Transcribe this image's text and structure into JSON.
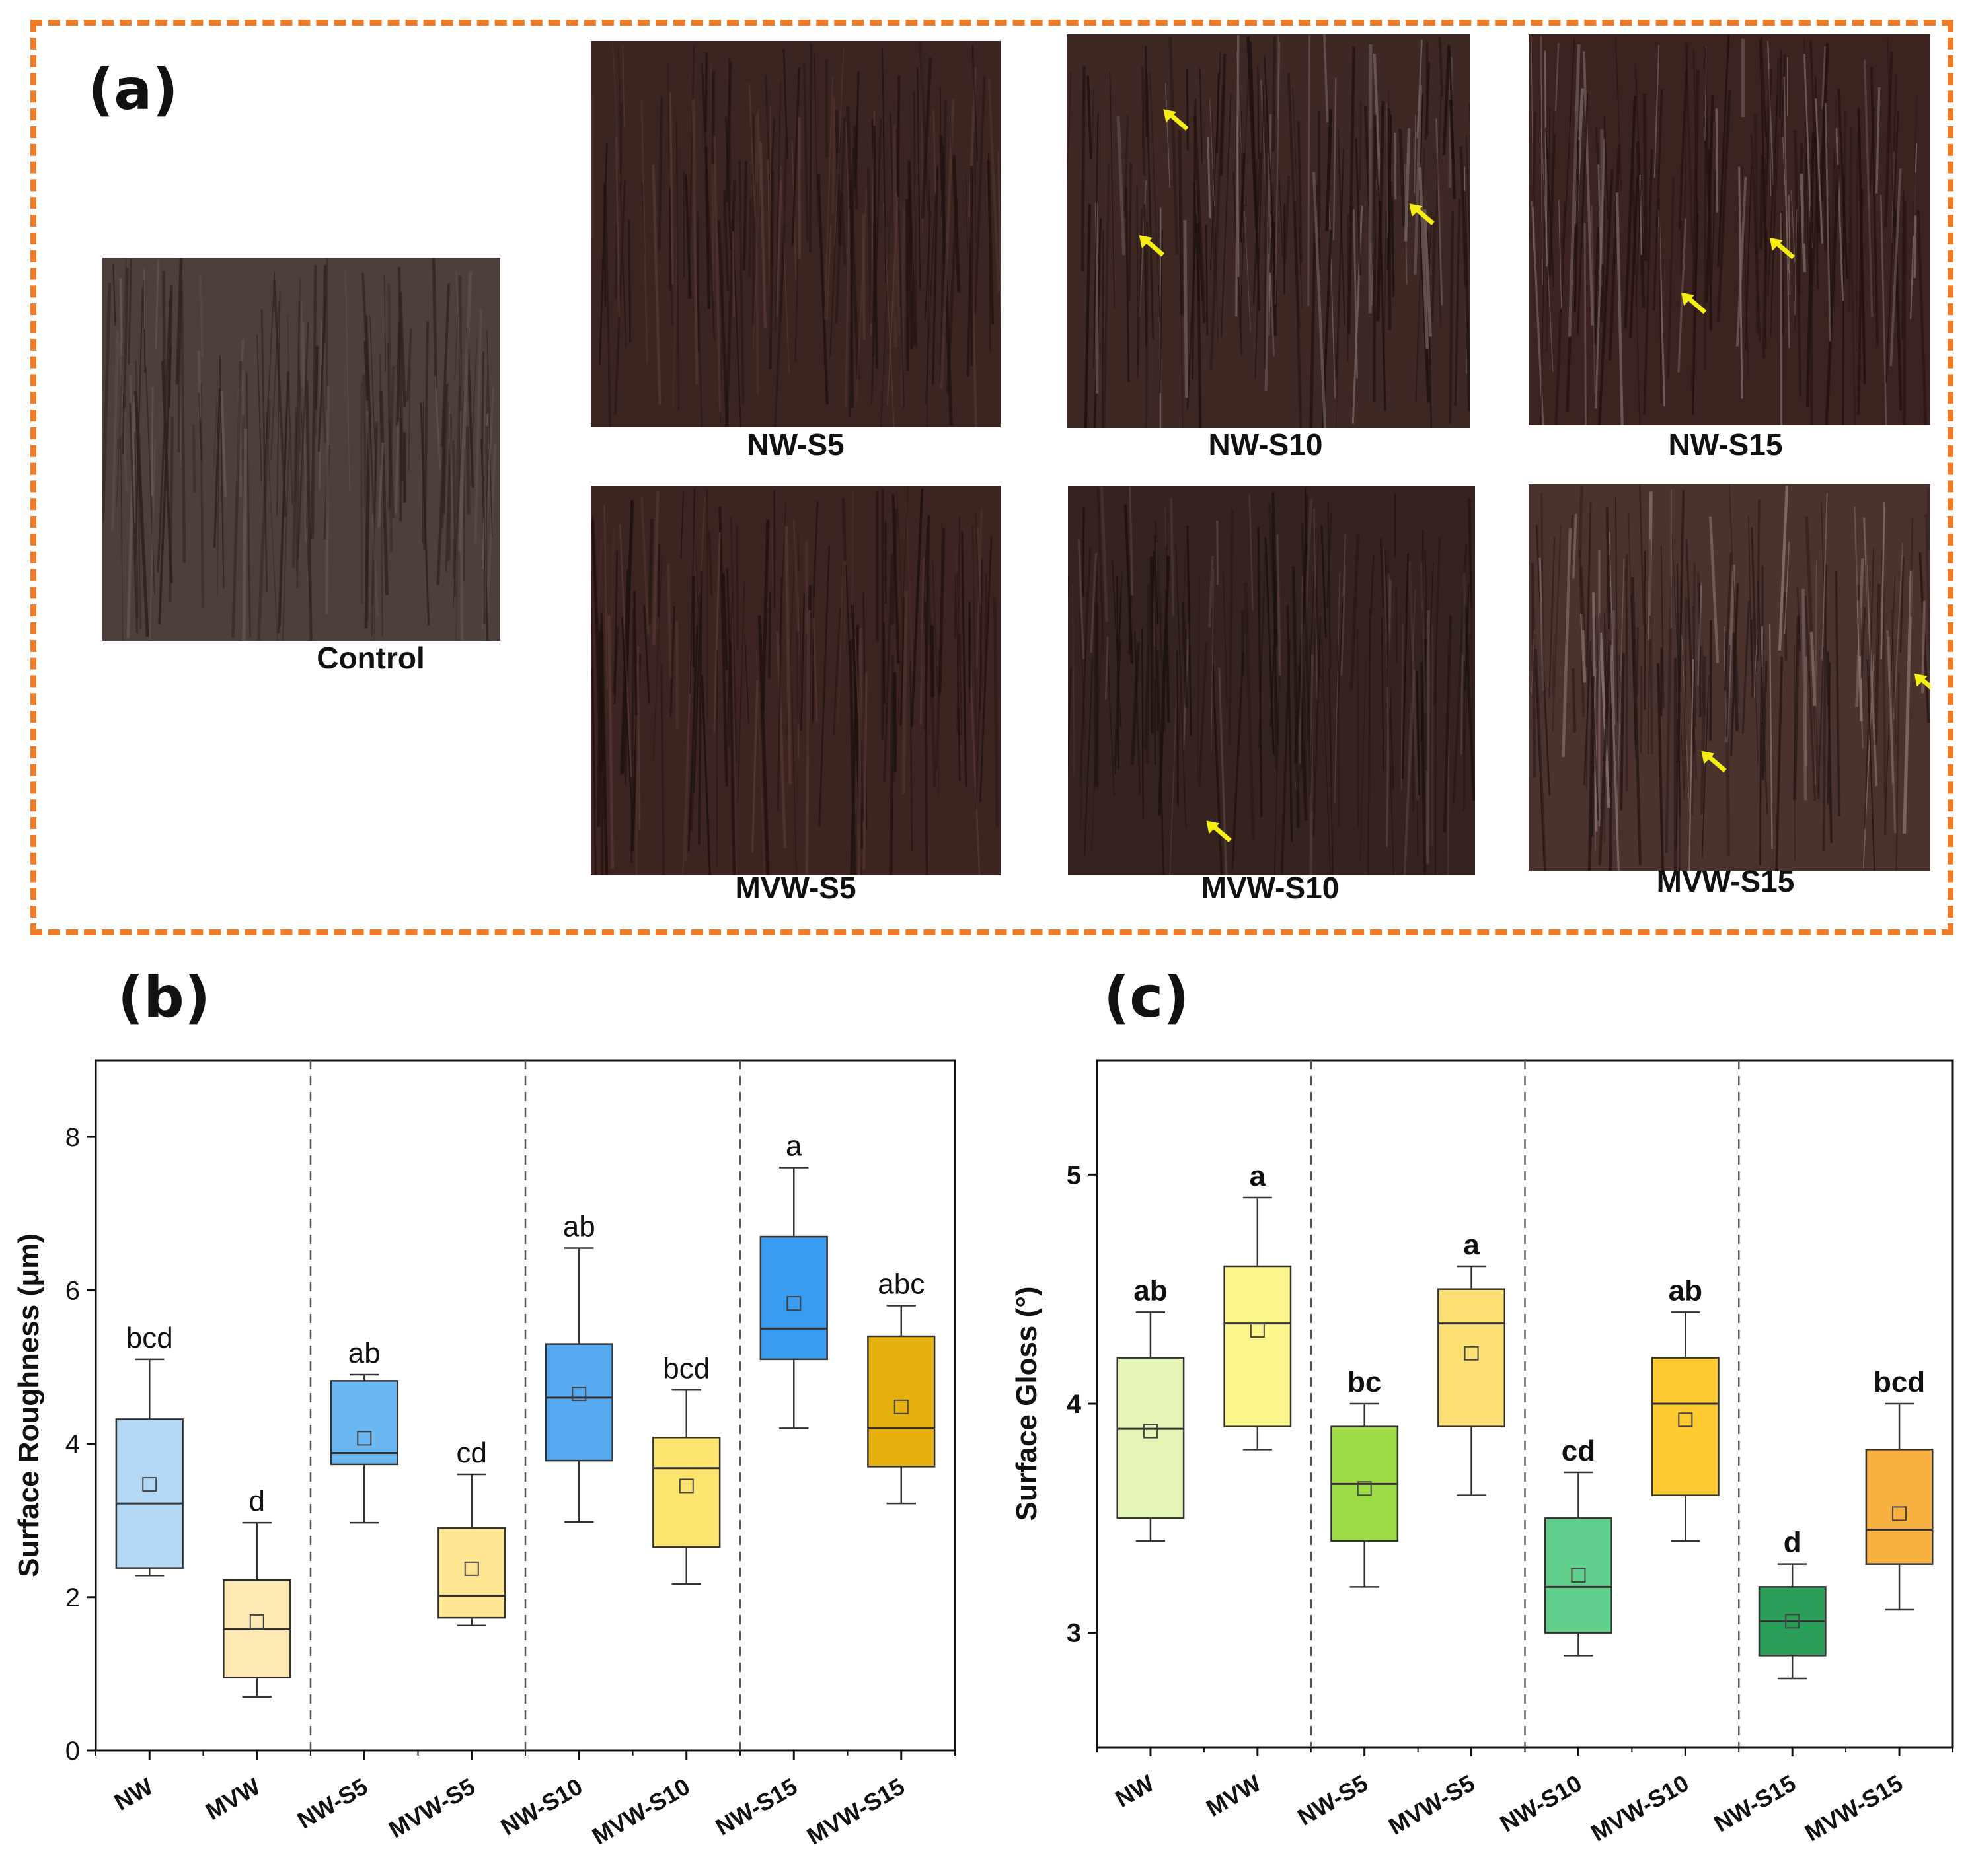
{
  "panel_a": {
    "letter": "(a)",
    "photos": [
      {
        "label": "Control",
        "base": "#4d3f3b",
        "dark": "#2c211e",
        "light": "#6a5650",
        "arrows": []
      },
      {
        "label": "NW-S5",
        "base": "#3b2521",
        "dark": "#1f1210",
        "light": "#563833",
        "arrows": []
      },
      {
        "label": "NW-S10",
        "base": "#3e2824",
        "dark": "#1c110f",
        "light": "#7a6a66",
        "arrows": [
          [
            0.24,
            0.19
          ],
          [
            0.18,
            0.51
          ],
          [
            0.85,
            0.43
          ]
        ]
      },
      {
        "label": "NW-S15",
        "base": "#3b2320",
        "dark": "#20120f",
        "light": "#7b6a66",
        "arrows": [
          [
            0.6,
            0.52
          ],
          [
            0.38,
            0.66
          ]
        ]
      },
      {
        "label": "MVW-S5",
        "base": "#3c2420",
        "dark": "#1d110e",
        "light": "#553632",
        "arrows": []
      },
      {
        "label": "MVW-S10",
        "base": "#352320",
        "dark": "#1b110f",
        "light": "#5a4440",
        "arrows": [
          [
            0.34,
            0.86
          ]
        ]
      },
      {
        "label": "MVW-S15",
        "base": "#4a322d",
        "dark": "#231614",
        "light": "#8a7570",
        "arrows": [
          [
            0.43,
            0.69
          ],
          [
            0.96,
            0.49
          ]
        ]
      }
    ]
  },
  "panel_b_letter": "(b)",
  "panel_c_letter": "(c)",
  "chart_data": [
    {
      "type": "box",
      "ylabel": "Surface Roughness (μm)",
      "ylim": [
        0,
        9
      ],
      "yticks": [
        0,
        2,
        4,
        6,
        8
      ],
      "categories": [
        "NW",
        "MVW",
        "NW-S5",
        "MVW-S5",
        "NW-S10",
        "MVW-S10",
        "NW-S15",
        "MVW-S15"
      ],
      "group_separators_after": [
        2,
        4,
        6
      ],
      "boxes": [
        {
          "min": 2.28,
          "q1": 2.38,
          "median": 3.22,
          "q3": 4.32,
          "max": 5.1,
          "mean": 3.47,
          "letter": "bcd",
          "color": "#b3d9f7"
        },
        {
          "min": 0.7,
          "q1": 0.95,
          "median": 1.58,
          "q3": 2.22,
          "max": 2.97,
          "mean": 1.68,
          "letter": "d",
          "color": "#fce9b3"
        },
        {
          "min": 2.97,
          "q1": 3.73,
          "median": 3.88,
          "q3": 4.82,
          "max": 4.9,
          "mean": 4.07,
          "letter": "ab",
          "color": "#6ab7f2"
        },
        {
          "min": 1.63,
          "q1": 1.73,
          "median": 2.02,
          "q3": 2.9,
          "max": 3.6,
          "mean": 2.37,
          "letter": "cd",
          "color": "#fde592"
        },
        {
          "min": 2.98,
          "q1": 3.78,
          "median": 4.6,
          "q3": 5.3,
          "max": 6.55,
          "mean": 4.65,
          "letter": "ab",
          "color": "#57a9ef"
        },
        {
          "min": 2.17,
          "q1": 2.65,
          "median": 3.68,
          "q3": 4.08,
          "max": 4.7,
          "mean": 3.45,
          "letter": "bcd",
          "color": "#fde46e"
        },
        {
          "min": 4.2,
          "q1": 5.1,
          "median": 5.5,
          "q3": 6.7,
          "max": 7.6,
          "mean": 5.83,
          "letter": "a",
          "color": "#3a9cf0"
        },
        {
          "min": 3.22,
          "q1": 3.7,
          "median": 4.2,
          "q3": 5.4,
          "max": 5.8,
          "mean": 4.48,
          "letter": "abc",
          "color": "#e6b10c"
        }
      ]
    },
    {
      "type": "box",
      "ylabel": "Surface Gloss (°)",
      "ylim": [
        2.5,
        5.5
      ],
      "yticks": [
        3,
        4,
        5
      ],
      "categories": [
        "NW",
        "MVW",
        "NW-S5",
        "MVW-S5",
        "NW-S10",
        "MVW-S10",
        "NW-S15",
        "MVW-S15"
      ],
      "group_separators_after": [
        2,
        4,
        6
      ],
      "boxes": [
        {
          "min": 3.4,
          "q1": 3.5,
          "median": 3.89,
          "q3": 4.2,
          "max": 4.4,
          "mean": 3.88,
          "letter": "ab",
          "color": "#e5f6b6"
        },
        {
          "min": 3.8,
          "q1": 3.9,
          "median": 4.35,
          "q3": 4.6,
          "max": 4.9,
          "mean": 4.32,
          "letter": "a",
          "color": "#fbf68c"
        },
        {
          "min": 3.2,
          "q1": 3.4,
          "median": 3.65,
          "q3": 3.9,
          "max": 4.0,
          "mean": 3.63,
          "letter": "bc",
          "color": "#9fdb44"
        },
        {
          "min": 3.6,
          "q1": 3.9,
          "median": 4.35,
          "q3": 4.5,
          "max": 4.6,
          "mean": 4.22,
          "letter": "a",
          "color": "#fde074"
        },
        {
          "min": 2.9,
          "q1": 3.0,
          "median": 3.2,
          "q3": 3.5,
          "max": 3.7,
          "mean": 3.25,
          "letter": "cd",
          "color": "#62d08c"
        },
        {
          "min": 3.4,
          "q1": 3.6,
          "median": 4.0,
          "q3": 4.2,
          "max": 4.4,
          "mean": 3.93,
          "letter": "ab",
          "color": "#fdcb31"
        },
        {
          "min": 2.8,
          "q1": 2.9,
          "median": 3.05,
          "q3": 3.2,
          "max": 3.3,
          "mean": 3.05,
          "letter": "d",
          "color": "#2a9e58"
        },
        {
          "min": 3.1,
          "q1": 3.3,
          "median": 3.45,
          "q3": 3.8,
          "max": 4.0,
          "mean": 3.52,
          "letter": "bcd",
          "color": "#f8b040"
        }
      ]
    }
  ]
}
